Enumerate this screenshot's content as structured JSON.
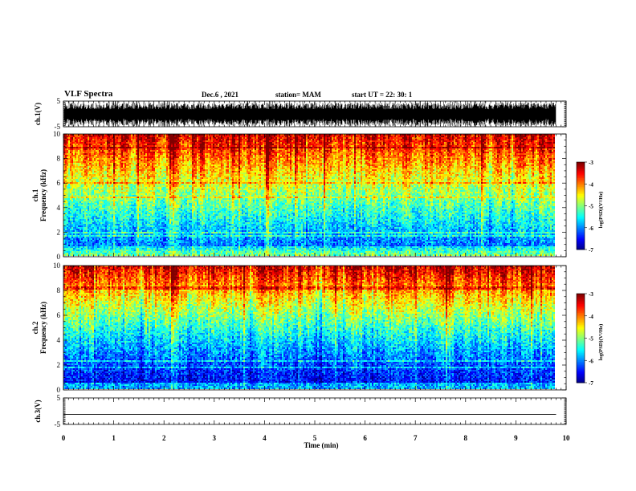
{
  "header": {
    "title": "VLF Spectra",
    "date": "Dec.6  , 2021",
    "station": "station= MAM",
    "start": "start  UT  =   22: 30: 1"
  },
  "chart_data": [
    {
      "type": "line",
      "panel": "ch1-waveform",
      "ylabel": "ch.1(V)",
      "ylim": [
        -5,
        5
      ],
      "yticks": [
        "5",
        "-5"
      ],
      "xlim": [
        0,
        10
      ]
    },
    {
      "type": "heatmap",
      "panel": "ch1-spectrogram",
      "ylabel_lines": [
        "ch.1",
        "Frequency (kHz)"
      ],
      "ylim": [
        0,
        10
      ],
      "yticks": [
        "0",
        "2",
        "4",
        "6",
        "8",
        "10"
      ],
      "xlim": [
        0,
        10
      ],
      "data_extent_min": 9.8,
      "colorbar": {
        "label": "log(PSD)(V²/Hz)",
        "range": [
          -7,
          -3
        ],
        "ticks": [
          "-3",
          "-4",
          "-5",
          "-6",
          "-7"
        ]
      }
    },
    {
      "type": "heatmap",
      "panel": "ch2-spectrogram",
      "ylabel_lines": [
        "ch.2",
        "Frequency (kHz)"
      ],
      "ylim": [
        0,
        10
      ],
      "yticks": [
        "0",
        "2",
        "4",
        "6",
        "8",
        "10"
      ],
      "xlim": [
        0,
        10
      ],
      "data_extent_min": 9.8,
      "colorbar": {
        "label": "log(PSD)(V²/Hz)",
        "range": [
          -7,
          -3
        ],
        "ticks": [
          "-3",
          "-4",
          "-5",
          "-6",
          "-7"
        ]
      }
    },
    {
      "type": "line",
      "panel": "ch3-waveform",
      "ylabel": "ch.3(V)",
      "ylim": [
        -5,
        5
      ],
      "yticks": [
        "5",
        "-5"
      ],
      "xlim": [
        0,
        10
      ],
      "constant_value": -1.2
    }
  ],
  "xaxis": {
    "label": "Time  (min)",
    "range": [
      0,
      10
    ],
    "ticks": [
      "0",
      "1",
      "2",
      "3",
      "4",
      "5",
      "6",
      "7",
      "8",
      "9",
      "10"
    ]
  },
  "colors": {
    "jet": [
      "#00008f",
      "#0000ff",
      "#0080ff",
      "#00ffff",
      "#80ff80",
      "#ffff00",
      "#ff8000",
      "#ff0000",
      "#800000"
    ]
  }
}
